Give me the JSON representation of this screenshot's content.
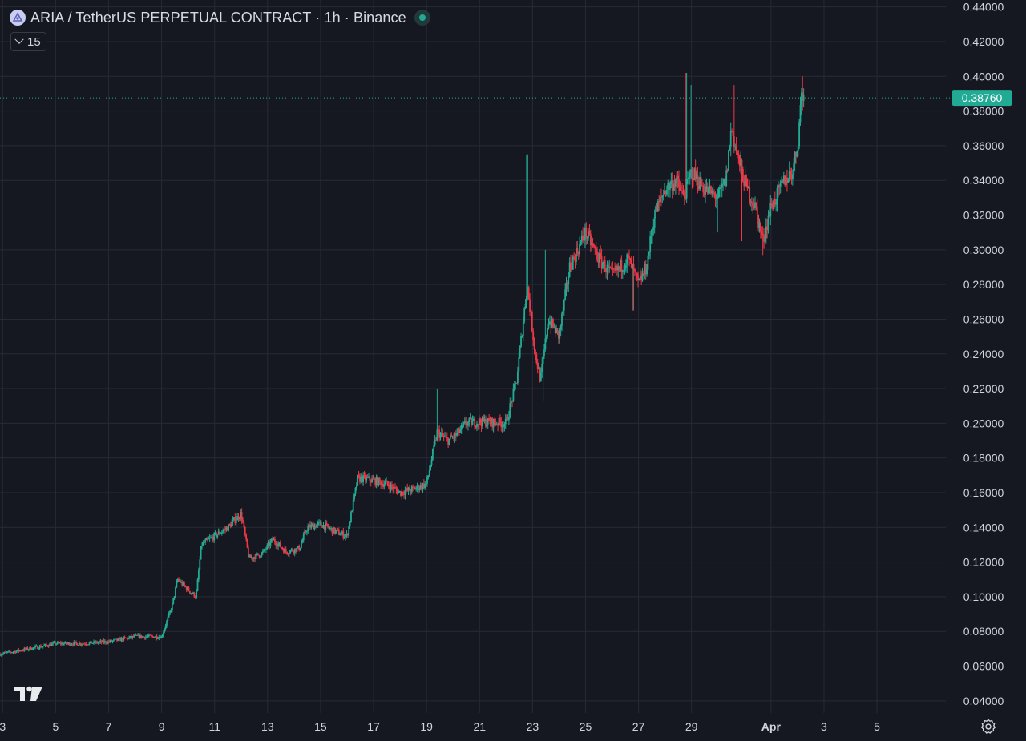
{
  "header": {
    "symbol_title": "ARIA / TetherUS PERPETUAL CONTRACT · 1h · Binance",
    "symbol_icon": "aria-coin-icon",
    "live_status_icon": "market-open-dot-icon"
  },
  "indicators": {
    "toggle_icon": "chevron-down-icon",
    "count": "15"
  },
  "colors": {
    "background": "#161821",
    "grid": "#262a35",
    "up": "#22ab94",
    "down": "#f23645",
    "axis_text": "#d1d4dc"
  },
  "chart_data": {
    "type": "candlestick",
    "title": "ARIA / TetherUS PERPETUAL CONTRACT · 1h · Binance",
    "interval": "1h",
    "y_ticks": [
      "0.44000",
      "0.42000",
      "0.40000",
      "0.38000",
      "0.36000",
      "0.34000",
      "0.32000",
      "0.30000",
      "0.28000",
      "0.26000",
      "0.24000",
      "0.22000",
      "0.20000",
      "0.18000",
      "0.16000",
      "0.14000",
      "0.12000",
      "0.10000",
      "0.08000",
      "0.06000",
      "0.04000"
    ],
    "ylim": [
      0.033,
      0.444
    ],
    "x_ticks": [
      {
        "label": "3",
        "day": 3
      },
      {
        "label": "5",
        "day": 5
      },
      {
        "label": "7",
        "day": 7
      },
      {
        "label": "9",
        "day": 9
      },
      {
        "label": "11",
        "day": 11
      },
      {
        "label": "13",
        "day": 13
      },
      {
        "label": "15",
        "day": 15
      },
      {
        "label": "17",
        "day": 17
      },
      {
        "label": "19",
        "day": 19
      },
      {
        "label": "21",
        "day": 21
      },
      {
        "label": "23",
        "day": 23
      },
      {
        "label": "25",
        "day": 25
      },
      {
        "label": "27",
        "day": 27
      },
      {
        "label": "29",
        "day": 29
      },
      {
        "label": "Apr",
        "day": 32
      },
      {
        "label": "3",
        "day": 34
      },
      {
        "label": "5",
        "day": 36
      }
    ],
    "xlim": [
      2.9,
      38.6
    ],
    "last_price": {
      "value": 0.3876,
      "label": "0.38760"
    },
    "grid": true,
    "close_path_by_day": [
      [
        2.9,
        0.067
      ],
      [
        4.0,
        0.07
      ],
      [
        5.0,
        0.073
      ],
      [
        6.0,
        0.073
      ],
      [
        7.0,
        0.074
      ],
      [
        8.0,
        0.077
      ],
      [
        9.0,
        0.077
      ],
      [
        9.4,
        0.095
      ],
      [
        9.6,
        0.11
      ],
      [
        10.0,
        0.104
      ],
      [
        10.3,
        0.1
      ],
      [
        10.5,
        0.13
      ],
      [
        11.0,
        0.135
      ],
      [
        11.5,
        0.14
      ],
      [
        12.0,
        0.148
      ],
      [
        12.3,
        0.122
      ],
      [
        12.8,
        0.125
      ],
      [
        13.2,
        0.133
      ],
      [
        13.7,
        0.126
      ],
      [
        14.2,
        0.128
      ],
      [
        14.5,
        0.14
      ],
      [
        15.0,
        0.142
      ],
      [
        15.5,
        0.138
      ],
      [
        16.0,
        0.135
      ],
      [
        16.4,
        0.168
      ],
      [
        16.7,
        0.168
      ],
      [
        17.5,
        0.165
      ],
      [
        18.0,
        0.16
      ],
      [
        18.5,
        0.162
      ],
      [
        19.0,
        0.165
      ],
      [
        19.4,
        0.195
      ],
      [
        19.8,
        0.19
      ],
      [
        20.1,
        0.193
      ],
      [
        20.5,
        0.2
      ],
      [
        21.0,
        0.201
      ],
      [
        22.0,
        0.2
      ],
      [
        22.4,
        0.225
      ],
      [
        22.8,
        0.28
      ],
      [
        23.1,
        0.24
      ],
      [
        23.3,
        0.225
      ],
      [
        23.6,
        0.26
      ],
      [
        24.0,
        0.25
      ],
      [
        24.4,
        0.29
      ],
      [
        25.0,
        0.31
      ],
      [
        25.5,
        0.295
      ],
      [
        26.0,
        0.285
      ],
      [
        26.6,
        0.295
      ],
      [
        27.0,
        0.28
      ],
      [
        27.3,
        0.29
      ],
      [
        27.6,
        0.32
      ],
      [
        28.0,
        0.335
      ],
      [
        28.4,
        0.34
      ],
      [
        28.7,
        0.33
      ],
      [
        29.0,
        0.345
      ],
      [
        29.5,
        0.335
      ],
      [
        30.0,
        0.33
      ],
      [
        30.3,
        0.34
      ],
      [
        30.5,
        0.37
      ],
      [
        30.8,
        0.35
      ],
      [
        31.1,
        0.335
      ],
      [
        31.4,
        0.325
      ],
      [
        31.7,
        0.305
      ],
      [
        32.0,
        0.325
      ],
      [
        32.2,
        0.33
      ],
      [
        32.5,
        0.34
      ],
      [
        32.8,
        0.345
      ],
      [
        33.0,
        0.36
      ],
      [
        33.15,
        0.39
      ],
      [
        33.25,
        0.3876
      ]
    ],
    "wick_spikes": [
      {
        "day": 22.8,
        "high": 0.355
      },
      {
        "day": 23.4,
        "low": 0.213
      },
      {
        "day": 23.5,
        "high": 0.3
      },
      {
        "day": 19.4,
        "high": 0.22
      },
      {
        "day": 28.8,
        "high": 0.402
      },
      {
        "day": 29.0,
        "high": 0.395
      },
      {
        "day": 30.0,
        "low": 0.31
      },
      {
        "day": 30.6,
        "high": 0.395
      },
      {
        "day": 30.9,
        "low": 0.305
      },
      {
        "day": 31.7,
        "low": 0.297
      },
      {
        "day": 26.8,
        "low": 0.265
      },
      {
        "day": 33.2,
        "high": 0.4
      }
    ]
  }
}
